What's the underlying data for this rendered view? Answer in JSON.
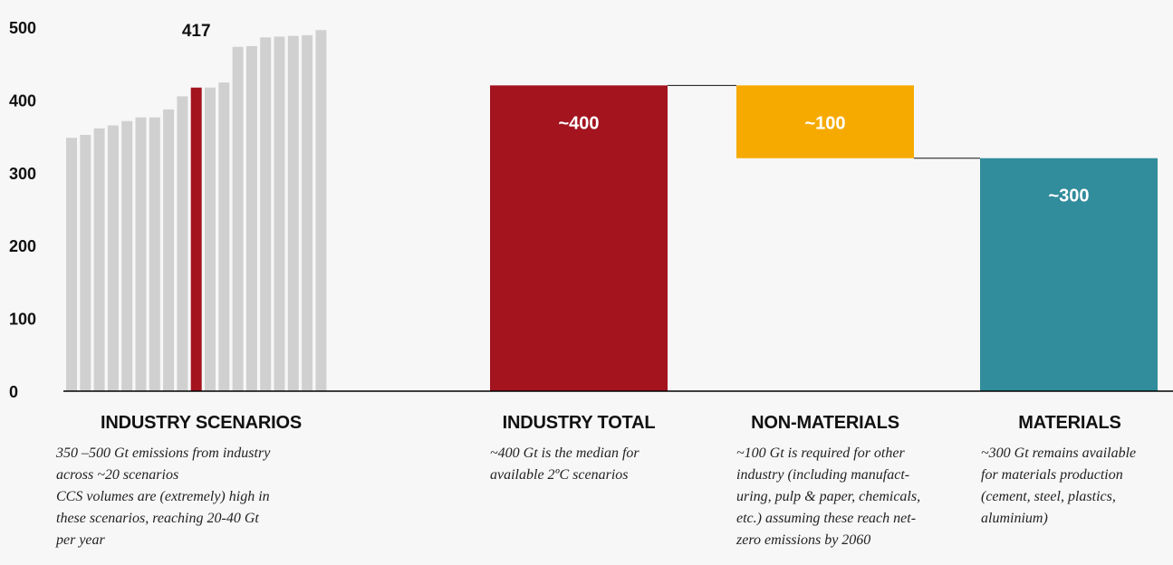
{
  "chart_data": {
    "type": "bar",
    "ylim": [
      0,
      500
    ],
    "yticks": [
      0,
      100,
      200,
      300,
      400,
      500
    ],
    "scenarios": {
      "values": [
        348,
        352,
        361,
        365,
        371,
        376,
        376,
        387,
        405,
        417,
        417,
        424,
        473,
        474,
        486,
        487,
        488,
        489,
        496
      ],
      "highlight_index": 9,
      "highlight_label": "417"
    },
    "waterfall": [
      {
        "label": "~400",
        "base": 0,
        "top": 420,
        "color": "#a3141f"
      },
      {
        "label": "~100",
        "base": 320,
        "top": 420,
        "color": "#f6aa00"
      },
      {
        "label": "~300",
        "base": 0,
        "top": 320,
        "color": "#318c9b"
      }
    ],
    "colors": {
      "scenario_bar": "#d0d0d0",
      "highlight": "#a3141f",
      "axis": "#000000"
    }
  },
  "captions": [
    {
      "title": "INDUSTRY SCENARIOS",
      "lines": [
        "350 –500 Gt emissions from industry",
        "across ~20 scenarios",
        "CCS volumes are (extremely) high in",
        "these scenarios, reaching 20-40 Gt",
        "per year"
      ]
    },
    {
      "title": "INDUSTRY TOTAL",
      "lines": [
        "~400 Gt is the median for",
        "available 2ºC scenarios"
      ]
    },
    {
      "title": "NON-MATERIALS",
      "lines": [
        "~100 Gt is required for other",
        "industry (including manufact-",
        "uring, pulp & paper, chemicals,",
        "etc.) assuming these reach net-",
        "zero emissions by 2060"
      ]
    },
    {
      "title": "MATERIALS",
      "lines": [
        "~300 Gt remains available",
        "for materials production",
        "(cement, steel, plastics,",
        "aluminium)"
      ]
    }
  ]
}
